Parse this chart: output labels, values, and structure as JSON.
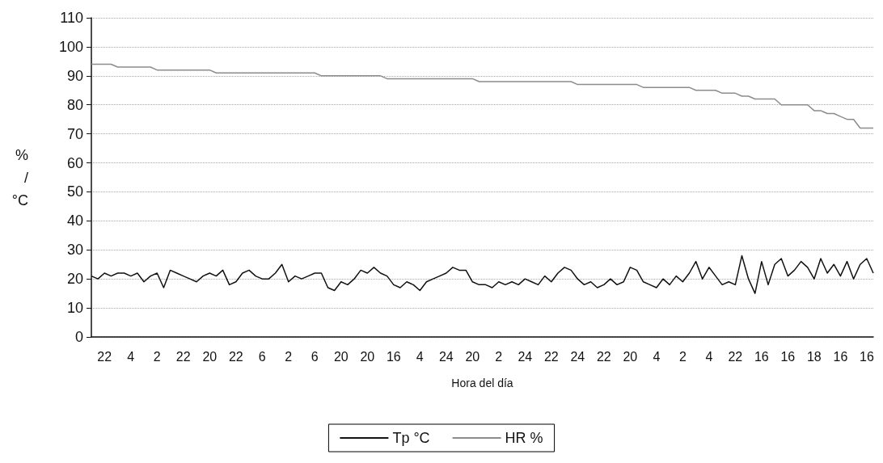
{
  "chart_data": {
    "type": "line",
    "xlabel": "Hora del día",
    "ylabel": "%\n/\n°C",
    "categories": [
      null,
      null,
      "22",
      null,
      null,
      null,
      "4",
      null,
      null,
      null,
      "2",
      null,
      null,
      null,
      "22",
      null,
      null,
      null,
      "20",
      null,
      null,
      null,
      "22",
      null,
      null,
      null,
      "6",
      null,
      null,
      null,
      "2",
      null,
      null,
      null,
      "6",
      null,
      null,
      null,
      "20",
      null,
      null,
      null,
      "20",
      null,
      null,
      null,
      "16",
      null,
      null,
      null,
      "4",
      null,
      null,
      null,
      "24",
      null,
      null,
      null,
      "20",
      null,
      null,
      null,
      "2",
      null,
      null,
      null,
      "24",
      null,
      null,
      null,
      "22",
      null,
      null,
      null,
      "24",
      null,
      null,
      null,
      "22",
      null,
      null,
      null,
      "20",
      null,
      null,
      null,
      "4",
      null,
      null,
      null,
      "2",
      null,
      null,
      null,
      "4",
      null,
      null,
      null,
      "22",
      null,
      null,
      null,
      "16",
      null,
      null,
      null,
      "16",
      null,
      null,
      null,
      "18",
      null,
      null,
      null,
      "16",
      null,
      null,
      null,
      "16",
      null
    ],
    "series": [
      {
        "name": "Tp °C",
        "color": "#111111",
        "values": [
          21,
          20,
          22,
          21,
          22,
          22,
          21,
          22,
          19,
          21,
          22,
          17,
          23,
          22,
          21,
          20,
          19,
          21,
          22,
          21,
          23,
          18,
          19,
          22,
          23,
          21,
          20,
          20,
          22,
          25,
          19,
          21,
          20,
          21,
          22,
          22,
          17,
          16,
          19,
          18,
          20,
          23,
          22,
          24,
          22,
          21,
          18,
          17,
          19,
          18,
          16,
          19,
          20,
          21,
          22,
          24,
          23,
          23,
          19,
          18,
          18,
          17,
          19,
          18,
          19,
          18,
          20,
          19,
          18,
          21,
          19,
          22,
          24,
          23,
          20,
          18,
          19,
          17,
          18,
          20,
          18,
          19,
          24,
          23,
          19,
          18,
          17,
          20,
          18,
          21,
          19,
          22,
          26,
          20,
          24,
          21,
          18,
          19,
          18,
          28,
          20,
          15,
          26,
          18,
          25,
          27,
          21,
          23,
          26,
          24,
          20,
          27,
          22,
          25,
          21,
          26,
          20,
          25,
          27,
          22
        ]
      },
      {
        "name": "HR %",
        "color": "#8c8c8c",
        "values": [
          94,
          94,
          94,
          94,
          93,
          93,
          93,
          93,
          93,
          93,
          92,
          92,
          92,
          92,
          92,
          92,
          92,
          92,
          92,
          91,
          91,
          91,
          91,
          91,
          91,
          91,
          91,
          91,
          91,
          91,
          91,
          91,
          91,
          91,
          91,
          90,
          90,
          90,
          90,
          90,
          90,
          90,
          90,
          90,
          90,
          89,
          89,
          89,
          89,
          89,
          89,
          89,
          89,
          89,
          89,
          89,
          89,
          89,
          89,
          88,
          88,
          88,
          88,
          88,
          88,
          88,
          88,
          88,
          88,
          88,
          88,
          88,
          88,
          88,
          87,
          87,
          87,
          87,
          87,
          87,
          87,
          87,
          87,
          87,
          86,
          86,
          86,
          86,
          86,
          86,
          86,
          86,
          85,
          85,
          85,
          85,
          84,
          84,
          84,
          83,
          83,
          82,
          82,
          82,
          82,
          80,
          80,
          80,
          80,
          80,
          78,
          78,
          77,
          77,
          76,
          75,
          75,
          72,
          72,
          72
        ]
      }
    ],
    "ylim": [
      0,
      110
    ],
    "yticks": [
      0,
      10,
      20,
      30,
      40,
      50,
      60,
      70,
      80,
      90,
      100,
      110
    ],
    "grid": "y",
    "legend": "bottom",
    "marker": "none",
    "line_style": "solid"
  }
}
